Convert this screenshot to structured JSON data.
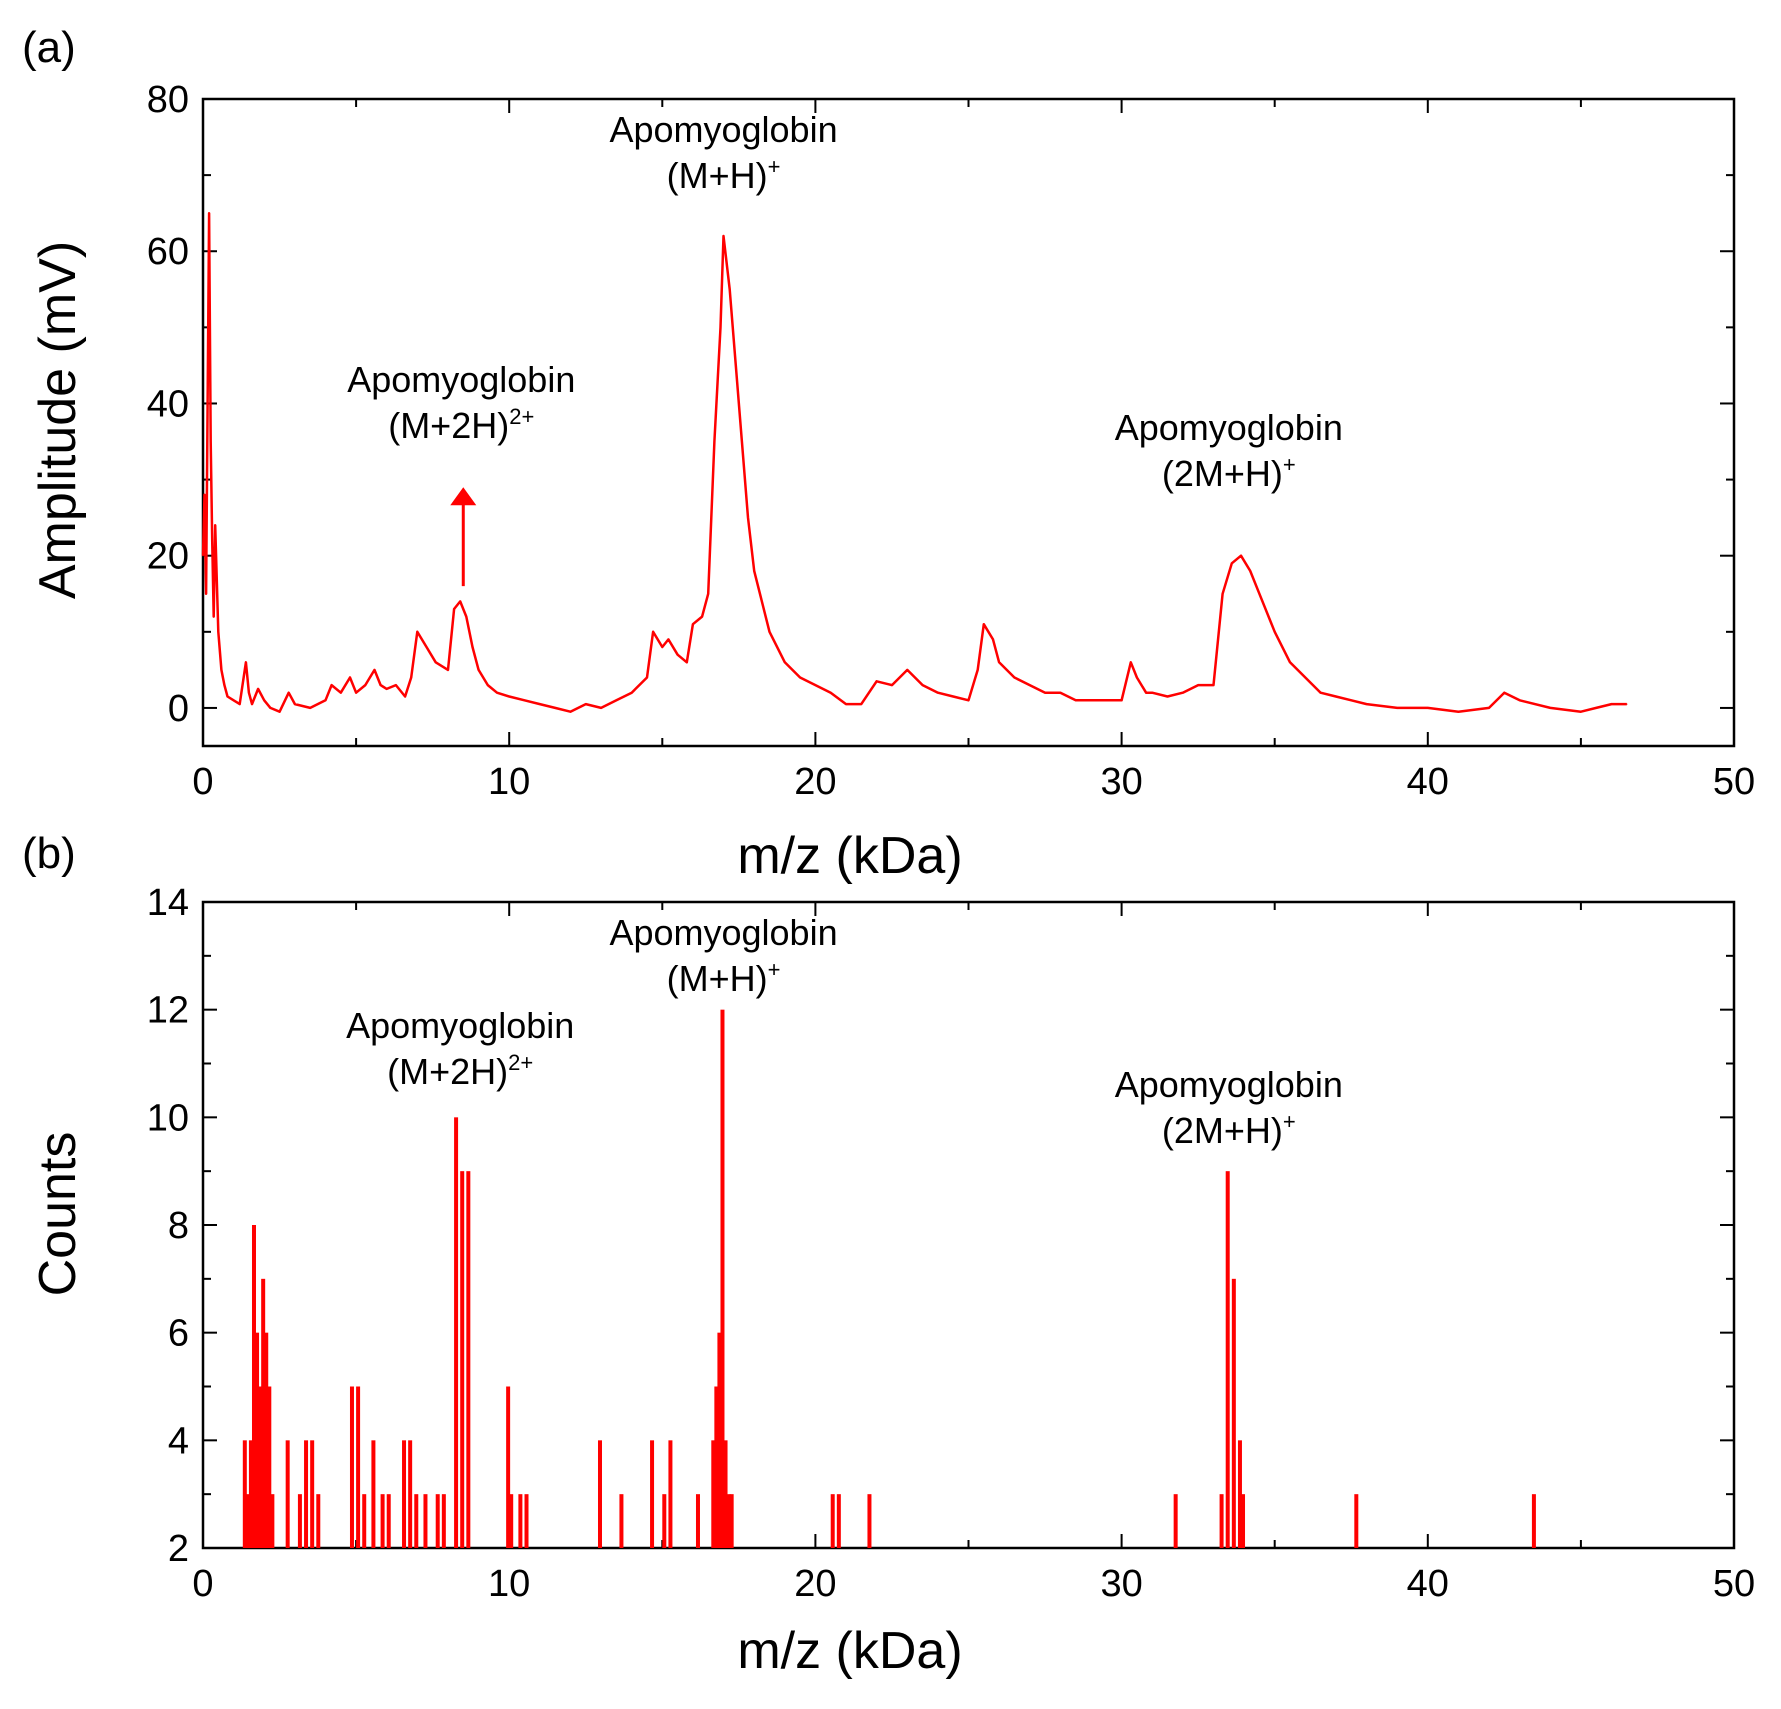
{
  "chart_data": [
    {
      "type": "line",
      "panel_label": "(a)",
      "xlabel": "m/z (kDa)",
      "ylabel": "Amplitude (mV)",
      "xlim": [
        0,
        50
      ],
      "ylim": [
        -5,
        80
      ],
      "xticks": [
        0,
        10,
        20,
        30,
        40,
        50
      ],
      "yticks": [
        0,
        20,
        40,
        60,
        80
      ],
      "color": "#ff0000",
      "series": [
        {
          "name": "spectrum",
          "x": [
            0,
            0.05,
            0.1,
            0.15,
            0.2,
            0.25,
            0.3,
            0.35,
            0.4,
            0.5,
            0.6,
            0.7,
            0.8,
            1.0,
            1.2,
            1.4,
            1.5,
            1.6,
            1.8,
            2.0,
            2.2,
            2.5,
            2.8,
            3.0,
            3.5,
            4.0,
            4.2,
            4.5,
            4.8,
            5.0,
            5.3,
            5.6,
            5.8,
            6.0,
            6.3,
            6.6,
            6.8,
            7.0,
            7.3,
            7.6,
            8.0,
            8.2,
            8.4,
            8.6,
            8.8,
            9.0,
            9.3,
            9.6,
            10.0,
            10.5,
            11.0,
            11.5,
            12.0,
            12.5,
            13.0,
            13.5,
            14.0,
            14.5,
            14.7,
            15.0,
            15.2,
            15.5,
            15.8,
            16.0,
            16.3,
            16.5,
            16.7,
            16.9,
            17.0,
            17.2,
            17.4,
            17.6,
            17.8,
            18.0,
            18.5,
            19.0,
            19.5,
            20.0,
            20.5,
            21.0,
            21.5,
            22.0,
            22.5,
            23.0,
            23.5,
            24.0,
            24.5,
            25.0,
            25.3,
            25.5,
            25.8,
            26.0,
            26.5,
            27.0,
            27.5,
            28.0,
            28.5,
            29.0,
            29.5,
            30.0,
            30.3,
            30.5,
            30.8,
            31.0,
            31.5,
            32.0,
            32.5,
            33.0,
            33.3,
            33.6,
            33.9,
            34.2,
            34.5,
            35.0,
            35.5,
            36.0,
            36.5,
            37.0,
            37.5,
            38.0,
            39.0,
            40.0,
            41.0,
            42.0,
            42.5,
            43.0,
            44.0,
            45.0,
            45.5,
            46.0,
            46.5
          ],
          "y": [
            20,
            28,
            15,
            40,
            65,
            35,
            22,
            12,
            24,
            10,
            5,
            3,
            1.5,
            1,
            0.5,
            6,
            2,
            0.5,
            2.5,
            1,
            0,
            -0.5,
            2,
            0.5,
            0,
            1,
            3,
            2,
            4,
            2,
            3,
            5,
            3,
            2.5,
            3,
            1.5,
            4,
            10,
            8,
            6,
            5,
            13,
            14,
            12,
            8,
            5,
            3,
            2,
            1.5,
            1,
            0.5,
            0,
            -0.5,
            0.5,
            0,
            1,
            2,
            4,
            10,
            8,
            9,
            7,
            6,
            11,
            12,
            15,
            35,
            50,
            62,
            55,
            45,
            35,
            25,
            18,
            10,
            6,
            4,
            3,
            2,
            0.5,
            0.5,
            3.5,
            3,
            5,
            3,
            2,
            1.5,
            1,
            5,
            11,
            9,
            6,
            4,
            3,
            2,
            2,
            1,
            1,
            1,
            1,
            6,
            4,
            2,
            2,
            1.5,
            2,
            3,
            3,
            15,
            19,
            20,
            18,
            15,
            10,
            6,
            4,
            2,
            1.5,
            1,
            0.5,
            0,
            0,
            -0.5,
            0,
            2,
            1,
            0,
            -0.5,
            0,
            0.5,
            0.5
          ]
        }
      ],
      "annotations": [
        {
          "line1": "Apomyoglobin",
          "line2": "(M+2H)",
          "sup": "2+",
          "x": 8.5
        },
        {
          "line1": "Apomyoglobin",
          "line2": "(M+H)",
          "sup": "+",
          "x": 17
        },
        {
          "line1": "Apomyoglobin",
          "line2": "(2M+H)",
          "sup": "+",
          "x": 33.5
        }
      ],
      "arrow": {
        "x": 8.5,
        "y_from": 16,
        "y_to": 29
      }
    },
    {
      "type": "bar",
      "panel_label": "(b)",
      "xlabel": "m/z (kDa)",
      "ylabel": "Counts",
      "xlim": [
        0,
        50
      ],
      "ylim": [
        2,
        14
      ],
      "xticks": [
        0,
        10,
        20,
        30,
        40,
        50
      ],
      "yticks": [
        2,
        4,
        6,
        8,
        10,
        12,
        14
      ],
      "color": "#ff0000",
      "bins": [
        1.3,
        1.4,
        1.5,
        1.6,
        1.7,
        1.8,
        1.9,
        2.0,
        2.1,
        2.2,
        2.7,
        3.1,
        3.3,
        3.5,
        3.7,
        4.8,
        5.0,
        5.2,
        5.5,
        5.8,
        6.0,
        6.5,
        6.7,
        6.9,
        7.2,
        7.6,
        7.8,
        8.2,
        8.4,
        8.6,
        9.9,
        10.0,
        10.3,
        10.5,
        12.9,
        13.6,
        14.6,
        15.0,
        15.2,
        16.1,
        16.6,
        16.7,
        16.8,
        16.9,
        17.0,
        17.1,
        17.2,
        20.5,
        20.7,
        21.7,
        31.7,
        33.2,
        33.4,
        33.6,
        33.8,
        33.9,
        37.6,
        43.4
      ],
      "counts": [
        4,
        3,
        4,
        8,
        6,
        5,
        7,
        6,
        5,
        3,
        4,
        3,
        4,
        4,
        3,
        5,
        5,
        3,
        4,
        3,
        3,
        4,
        4,
        3,
        3,
        3,
        3,
        10,
        9,
        9,
        5,
        3,
        3,
        3,
        4,
        3,
        4,
        3,
        4,
        3,
        4,
        5,
        6,
        12,
        4,
        3,
        3,
        3,
        3,
        3,
        3,
        3,
        9,
        7,
        4,
        3,
        3,
        3
      ],
      "annotations": [
        {
          "line1": "Apomyoglobin",
          "line2": "(M+2H)",
          "sup": "2+",
          "x": 8.4
        },
        {
          "line1": "Apomyoglobin",
          "line2": "(M+H)",
          "sup": "+",
          "x": 17
        },
        {
          "line1": "Apomyoglobin",
          "line2": "(2M+H)",
          "sup": "+",
          "x": 33.5
        }
      ]
    }
  ]
}
